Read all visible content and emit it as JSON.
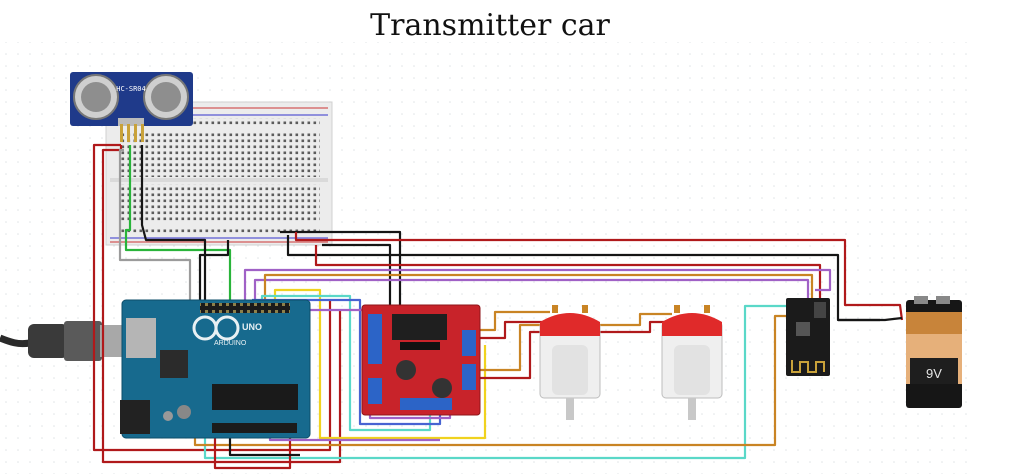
{
  "title": "Transmitter car",
  "components": {
    "ultrasonic_label": "HC-SR04",
    "arduino_brand": "ARDUINO",
    "arduino_model": "UNO",
    "battery_label": "9V"
  },
  "colors": {
    "wire_red": "#b0191b",
    "wire_black": "#151515",
    "wire_green": "#29b43a",
    "wire_gray": "#9b9b9b",
    "wire_purple": "#a061c6",
    "wire_yellow": "#f0d21e",
    "wire_orange": "#c98424",
    "wire_cyan": "#5ad8c8",
    "wire_blue": "#4763d2",
    "arduino_board": "#176a8e",
    "driver_board": "#c8232a",
    "motor_cap": "#e02a2a",
    "breadboard": "#ececec",
    "sensor_board": "#1f3a8a"
  }
}
